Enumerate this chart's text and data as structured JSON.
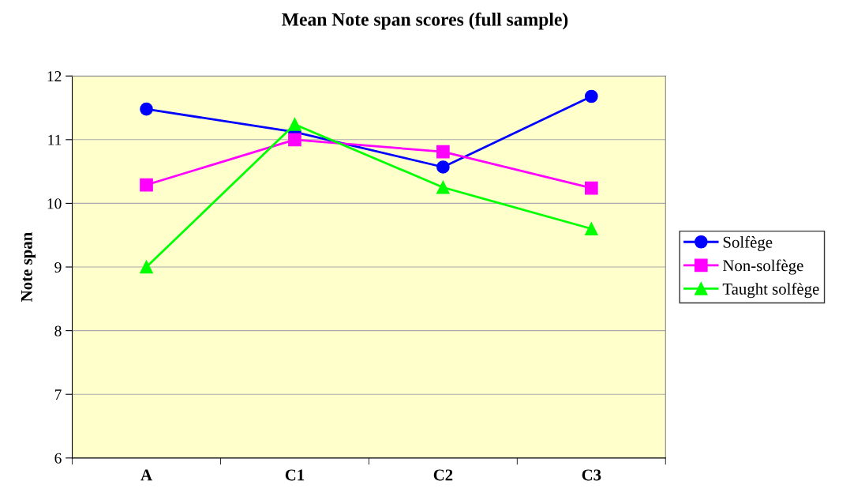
{
  "chart_data": {
    "type": "line",
    "title": "Mean Note span scores (full sample)",
    "ylabel": "Note span",
    "categories": [
      "A",
      "C1",
      "C2",
      "C3"
    ],
    "series": [
      {
        "name": "Solfège",
        "color": "#0000ff",
        "marker": "circle",
        "values": [
          11.48,
          11.12,
          10.57,
          11.68
        ]
      },
      {
        "name": "Non-solfège",
        "color": "#ff00ff",
        "marker": "square",
        "values": [
          10.29,
          11.0,
          10.81,
          10.24
        ]
      },
      {
        "name": "Taught solfège",
        "color": "#00ff00",
        "marker": "triangle",
        "values": [
          9.0,
          11.24,
          10.25,
          9.6
        ]
      }
    ],
    "ylim": [
      6,
      12
    ],
    "yticks": [
      6,
      7,
      8,
      9,
      10,
      11,
      12
    ],
    "grid": "y",
    "legend": "right"
  }
}
